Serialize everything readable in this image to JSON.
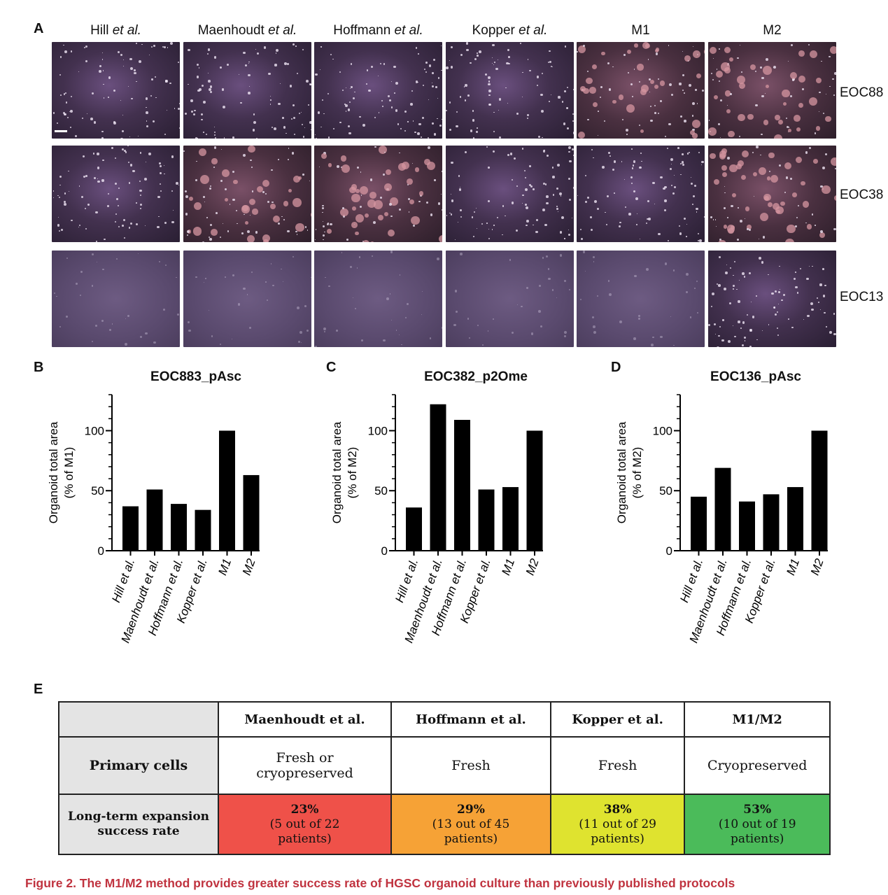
{
  "panels": {
    "a": "A",
    "b": "B",
    "c": "C",
    "d": "D",
    "e": "E"
  },
  "micro": {
    "columns": [
      {
        "name": "Hill",
        "suffix": " et al."
      },
      {
        "name": "Maenhoudt",
        "suffix": " et al."
      },
      {
        "name": "Hoffmann",
        "suffix": " et al."
      },
      {
        "name": "Kopper",
        "suffix": " et al."
      },
      {
        "name": "M1",
        "suffix": ""
      },
      {
        "name": "M2",
        "suffix": ""
      }
    ],
    "rows": [
      "EOC88",
      "EOC38",
      "EOC13"
    ]
  },
  "chart_data": [
    {
      "type": "bar",
      "title": "EOC883_pAsc",
      "ylabel_line1": "Organoid total area",
      "ylabel_line2": "(% of M1)",
      "categories": [
        "Hill et al.",
        "Maenhoudt et al.",
        "Hoffmann et al.",
        "Kopper et al.",
        "M1",
        "M2"
      ],
      "values": [
        37,
        51,
        39,
        34,
        100,
        63
      ],
      "ylim": [
        0,
        130
      ],
      "yticks": [
        0,
        50,
        100
      ]
    },
    {
      "type": "bar",
      "title": "EOC382_p2Ome",
      "ylabel_line1": "Organoid total area",
      "ylabel_line2": "(% of M2)",
      "categories": [
        "Hill et al.",
        "Maenhoudt et al.",
        "Hoffmann et al.",
        "Kopper et al.",
        "M1",
        "M2"
      ],
      "values": [
        36,
        122,
        109,
        51,
        53,
        100
      ],
      "ylim": [
        0,
        130
      ],
      "yticks": [
        0,
        50,
        100
      ]
    },
    {
      "type": "bar",
      "title": "EOC136_pAsc",
      "ylabel_line1": "Organoid total area",
      "ylabel_line2": "(% of M2)",
      "categories": [
        "Hill et al.",
        "Maenhoudt et al.",
        "Hoffmann et al.",
        "Kopper et al.",
        "M1",
        "M2"
      ],
      "values": [
        45,
        69,
        41,
        47,
        53,
        100
      ],
      "ylim": [
        0,
        130
      ],
      "yticks": [
        0,
        50,
        100
      ]
    }
  ],
  "table": {
    "headers": [
      "",
      "Maenhoudt et al.",
      "Hoffmann et al.",
      "Kopper et al.",
      "M1/M2"
    ],
    "primary": {
      "label": "Primary cells",
      "values": [
        [
          "Fresh or",
          "cryopreserved"
        ],
        [
          "Fresh"
        ],
        [
          "Fresh"
        ],
        [
          "Cryopreserved"
        ]
      ]
    },
    "expansion": {
      "label_line1": "Long-term expansion",
      "label_line2": "success rate",
      "cells": [
        {
          "pct": "23%",
          "line1": "(5 out of 22",
          "line2": "patients)",
          "color": "#ef5149"
        },
        {
          "pct": "29%",
          "line1": "(13 out of 45",
          "line2": "patients)",
          "color": "#f6a236"
        },
        {
          "pct": "38%",
          "line1": "(11 out of 29",
          "line2": "patients)",
          "color": "#dfe32f"
        },
        {
          "pct": "53%",
          "line1": "(10 out of 19",
          "line2": "patients)",
          "color": "#4bbb5a"
        }
      ]
    }
  },
  "caption": "Figure 2.  The M1/M2 method provides greater success rate of HGSC organoid culture than previously published protocols"
}
